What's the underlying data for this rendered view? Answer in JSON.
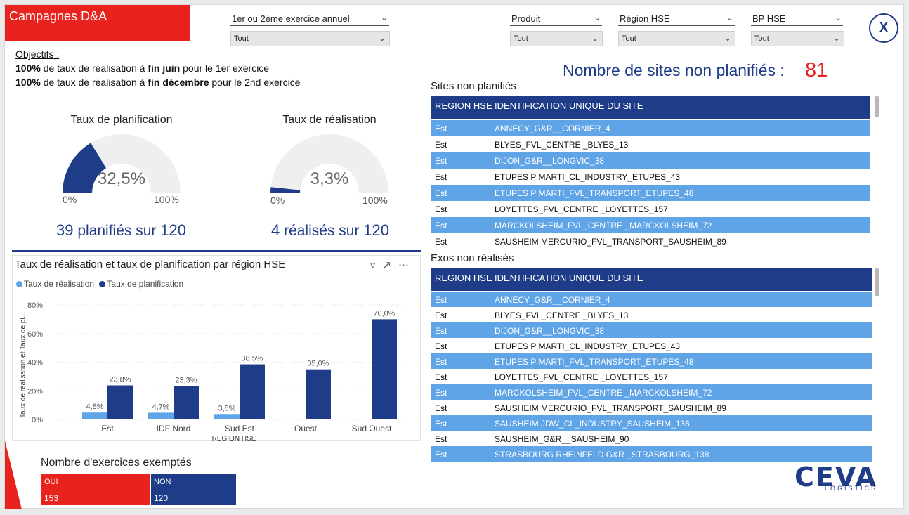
{
  "header": {
    "title": "Campagnes D&A",
    "slicers": [
      {
        "label": "1er ou 2ème exercice annuel",
        "value": "Tout"
      },
      {
        "label": "Produit",
        "value": "Tout"
      },
      {
        "label": "Région HSE",
        "value": "Tout"
      },
      {
        "label": "BP HSE",
        "value": "Tout"
      }
    ],
    "close_label": "X"
  },
  "objectives": {
    "head": "Objectifs :",
    "line1_bold1": "100%",
    "line1_mid": " de taux de réalisation à ",
    "line1_bold2": "fin juin",
    "line1_end": " pour le 1er exercice",
    "line2_bold1": "100%",
    "line2_mid": " de taux de réalisation à ",
    "line2_bold2": "fin décembre",
    "line2_end": " pour le 2nd exercice"
  },
  "gauges": [
    {
      "title": "Taux de planification",
      "value_label": "32,5%",
      "value": 0.325,
      "min": "0%",
      "max": "100%",
      "count": "39",
      "text": " planifiés sur ",
      "total": "120"
    },
    {
      "title": "Taux de réalisation",
      "value_label": "3,3%",
      "value": 0.033,
      "min": "0%",
      "max": "100%",
      "count": "4",
      "text": " réalisés sur ",
      "total": "120"
    }
  ],
  "chart_data": {
    "type": "bar",
    "title": "Taux de réalisation et taux de planification par région HSE",
    "xlabel": "REGION HSE",
    "ylabel": "Taux de réalisation et Taux de pl...",
    "categories": [
      "Est",
      "IDF Nord",
      "Sud Est",
      "Ouest",
      "Sud Ouest"
    ],
    "series": [
      {
        "name": "Taux de réalisation",
        "color": "#5fa4e6",
        "values": [
          4.8,
          4.7,
          3.8,
          null,
          null
        ],
        "labels": [
          "4,8%",
          "4,7%",
          "3,8%",
          "",
          ""
        ]
      },
      {
        "name": "Taux de planification",
        "color": "#1f3c88",
        "values": [
          23.8,
          23.3,
          38.5,
          35.0,
          70.0
        ],
        "labels": [
          "23,8%",
          "23,3%",
          "38,5%",
          "35,0%",
          "70,0%"
        ]
      }
    ],
    "ylim": [
      0,
      80
    ],
    "yticks": [
      "0%",
      "20%",
      "40%",
      "60%",
      "80%"
    ],
    "grid": true,
    "legend": "top-left"
  },
  "chart_icons": {
    "filter": "filter-icon",
    "focus": "focus-mode-icon",
    "more": "more-options-icon"
  },
  "exemptions": {
    "title": "Nombre d'exercices exemptés",
    "items": [
      {
        "label": "OUI",
        "value": "153",
        "color": "#e8221c"
      },
      {
        "label": "NON",
        "value": "120",
        "color": "#1f3c88"
      }
    ]
  },
  "summary": {
    "label": "Nombre de sites non planifiés :",
    "value": "81"
  },
  "table1": {
    "title": "Sites non planifiés",
    "headers": [
      "REGION HSE",
      "IDENTIFICATION UNIQUE DU SITE"
    ],
    "rows": [
      [
        "Est",
        "ANNECY_G&R__CORNIER_4"
      ],
      [
        "Est",
        "BLYES_FVL_CENTRE _BLYES_13"
      ],
      [
        "Est",
        "DIJON_G&R__LONGVIC_38"
      ],
      [
        "Est",
        "ETUPES P MARTI_CL_INDUSTRY_ETUPES_43"
      ],
      [
        "Est",
        "ETUPES P MARTI_FVL_TRANSPORT_ETUPES_48"
      ],
      [
        "Est",
        "LOYETTES_FVL_CENTRE _LOYETTES_157"
      ],
      [
        "Est",
        "MARCKOLSHEIM_FVL_CENTRE _MARCKOLSHEIM_72"
      ],
      [
        "Est",
        "SAUSHEIM MERCURIO_FVL_TRANSPORT_SAUSHEIM_89"
      ]
    ]
  },
  "table2": {
    "title": "Exos non réalisés",
    "headers": [
      "REGION HSE",
      "IDENTIFICATION UNIQUE DU SITE"
    ],
    "rows": [
      [
        "Est",
        "ANNECY_G&R__CORNIER_4"
      ],
      [
        "Est",
        "BLYES_FVL_CENTRE _BLYES_13"
      ],
      [
        "Est",
        "DIJON_G&R__LONGVIC_38"
      ],
      [
        "Est",
        "ETUPES P MARTI_CL_INDUSTRY_ETUPES_43"
      ],
      [
        "Est",
        "ETUPES P MARTI_FVL_TRANSPORT_ETUPES_48"
      ],
      [
        "Est",
        "LOYETTES_FVL_CENTRE _LOYETTES_157"
      ],
      [
        "Est",
        "MARCKOLSHEIM_FVL_CENTRE _MARCKOLSHEIM_72"
      ],
      [
        "Est",
        "SAUSHEIM MERCURIO_FVL_TRANSPORT_SAUSHEIM_89"
      ],
      [
        "Est",
        "SAUSHEIM JDW_CL_INDUSTRY_SAUSHEIM_136"
      ],
      [
        "Est",
        "SAUSHEIM_G&R__SAUSHEIM_90"
      ],
      [
        "Est",
        "STRASBOURG RHEINFELD G&R _STRASBOURG_138"
      ]
    ]
  },
  "logo": {
    "name": "CEVA",
    "sub": "LOGISTICS"
  },
  "colors": {
    "accent_red": "#e8221c",
    "navy": "#1f3c88",
    "light_blue": "#5fa4e6",
    "track": "#efefef"
  }
}
